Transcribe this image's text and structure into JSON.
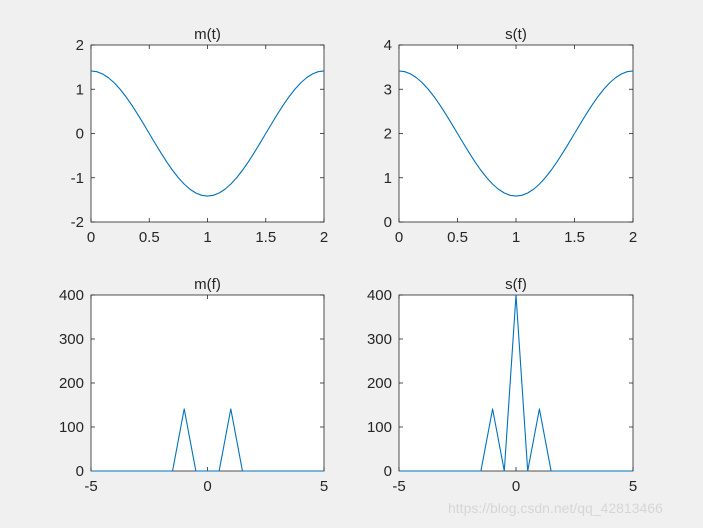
{
  "chart_data": [
    {
      "type": "line",
      "title": "m(t)",
      "xlabel": "",
      "ylabel": "",
      "xlim": [
        0,
        2
      ],
      "ylim": [
        -2,
        2
      ],
      "xticks": [
        0,
        0.5,
        1,
        1.5,
        2
      ],
      "xtick_labels": [
        "0",
        "0.5",
        "1",
        "1.5",
        "2"
      ],
      "yticks": [
        -2,
        -1,
        0,
        1,
        2
      ],
      "ytick_labels": [
        "-2",
        "-1",
        "0",
        "1",
        "2"
      ],
      "grid": false,
      "series": [
        {
          "color": "#0072bd",
          "x": [
            0,
            0.05,
            0.1,
            0.15,
            0.2,
            0.25,
            0.3,
            0.35,
            0.4,
            0.45,
            0.5,
            0.55,
            0.6,
            0.65,
            0.7,
            0.75,
            0.8,
            0.85,
            0.9,
            0.95,
            1,
            1.05,
            1.1,
            1.15,
            1.2,
            1.25,
            1.3,
            1.35,
            1.4,
            1.45,
            1.5,
            1.55,
            1.6,
            1.65,
            1.7,
            1.75,
            1.8,
            1.85,
            1.9,
            1.95,
            2
          ],
          "y": [
            1.414,
            1.397,
            1.345,
            1.26,
            1.144,
            1,
            0.831,
            0.642,
            0.437,
            0.221,
            0,
            -0.221,
            -0.437,
            -0.642,
            -0.831,
            -1,
            -1.144,
            -1.26,
            -1.345,
            -1.397,
            -1.414,
            -1.397,
            -1.345,
            -1.26,
            -1.144,
            -1,
            -0.831,
            -0.642,
            -0.437,
            -0.221,
            0,
            0.221,
            0.437,
            0.642,
            0.831,
            1,
            1.144,
            1.26,
            1.345,
            1.397,
            1.414
          ]
        }
      ]
    },
    {
      "type": "line",
      "title": "s(t)",
      "xlabel": "",
      "ylabel": "",
      "xlim": [
        0,
        2
      ],
      "ylim": [
        0,
        4
      ],
      "xticks": [
        0,
        0.5,
        1,
        1.5,
        2
      ],
      "xtick_labels": [
        "0",
        "0.5",
        "1",
        "1.5",
        "2"
      ],
      "yticks": [
        0,
        1,
        2,
        3,
        4
      ],
      "ytick_labels": [
        "0",
        "1",
        "2",
        "3",
        "4"
      ],
      "grid": false,
      "series": [
        {
          "color": "#0072bd",
          "x": [
            0,
            0.05,
            0.1,
            0.15,
            0.2,
            0.25,
            0.3,
            0.35,
            0.4,
            0.45,
            0.5,
            0.55,
            0.6,
            0.65,
            0.7,
            0.75,
            0.8,
            0.85,
            0.9,
            0.95,
            1,
            1.05,
            1.1,
            1.15,
            1.2,
            1.25,
            1.3,
            1.35,
            1.4,
            1.45,
            1.5,
            1.55,
            1.6,
            1.65,
            1.7,
            1.75,
            1.8,
            1.85,
            1.9,
            1.95,
            2
          ],
          "y": [
            3.414,
            3.397,
            3.345,
            3.26,
            3.144,
            3,
            2.831,
            2.642,
            2.437,
            2.221,
            2,
            1.779,
            1.563,
            1.358,
            1.169,
            1,
            0.856,
            0.74,
            0.655,
            0.603,
            0.586,
            0.603,
            0.655,
            0.74,
            0.856,
            1,
            1.169,
            1.358,
            1.563,
            1.779,
            2,
            2.221,
            2.437,
            2.642,
            2.831,
            3,
            3.144,
            3.26,
            3.345,
            3.397,
            3.414
          ]
        }
      ]
    },
    {
      "type": "line",
      "title": "m(f)",
      "xlabel": "",
      "ylabel": "",
      "xlim": [
        -5,
        5
      ],
      "ylim": [
        0,
        400
      ],
      "xticks": [
        -5,
        0,
        5
      ],
      "xtick_labels": [
        "-5",
        "0",
        "5"
      ],
      "yticks": [
        0,
        100,
        200,
        300,
        400
      ],
      "ytick_labels": [
        "0",
        "100",
        "200",
        "300",
        "400"
      ],
      "grid": false,
      "series": [
        {
          "color": "#0072bd",
          "x": [
            -5,
            -1.5,
            -1,
            -0.5,
            0.5,
            1,
            1.5,
            5
          ],
          "y": [
            0,
            0,
            141,
            0,
            0,
            141,
            0,
            0
          ]
        }
      ]
    },
    {
      "type": "line",
      "title": "s(f)",
      "xlabel": "",
      "ylabel": "",
      "xlim": [
        -5,
        5
      ],
      "ylim": [
        0,
        400
      ],
      "xticks": [
        -5,
        0,
        5
      ],
      "xtick_labels": [
        "-5",
        "0",
        "5"
      ],
      "yticks": [
        0,
        100,
        200,
        300,
        400
      ],
      "ytick_labels": [
        "0",
        "100",
        "200",
        "300",
        "400"
      ],
      "grid": false,
      "series": [
        {
          "color": "#0072bd",
          "x": [
            -5,
            -1.5,
            -1,
            -0.5,
            0,
            0.5,
            1,
            1.5,
            5
          ],
          "y": [
            0,
            0,
            141,
            0,
            400,
            0,
            141,
            0,
            0
          ]
        }
      ]
    }
  ],
  "watermark": "https://blog.csdn.net/qq_42813466"
}
